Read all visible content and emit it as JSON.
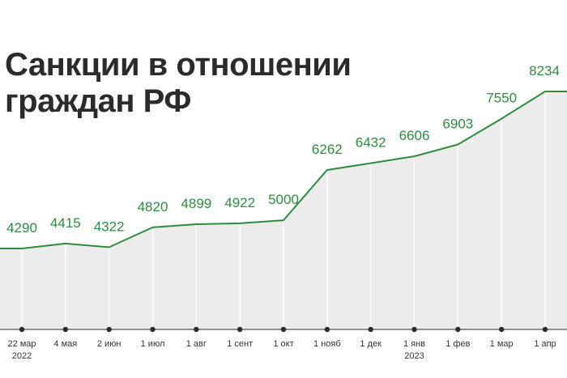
{
  "chart_data": {
    "type": "area",
    "title_lines": [
      "Санкции в отношении",
      "граждан РФ"
    ],
    "categories": [
      {
        "label": "22 мар",
        "year": "2022"
      },
      {
        "label": "4 мая",
        "year": ""
      },
      {
        "label": "2 июн",
        "year": ""
      },
      {
        "label": "1 июл",
        "year": ""
      },
      {
        "label": "1 авг",
        "year": ""
      },
      {
        "label": "1 сент",
        "year": ""
      },
      {
        "label": "1 окт",
        "year": ""
      },
      {
        "label": "1 нояб",
        "year": ""
      },
      {
        "label": "1 дек",
        "year": ""
      },
      {
        "label": "1 янв",
        "year": "2023"
      },
      {
        "label": "1 фев",
        "year": ""
      },
      {
        "label": "1 мар",
        "year": ""
      },
      {
        "label": "1 апр",
        "year": ""
      }
    ],
    "values": [
      4290,
      4415,
      4322,
      4820,
      4899,
      4922,
      5000,
      6262,
      6432,
      6606,
      6903,
      7550,
      8234
    ],
    "colors": {
      "line": "#2e8b40",
      "fill": "#ececec",
      "labels": "#2e8b40",
      "axis": "#2b2b2b",
      "title": "#2b2b2b"
    },
    "grid": "vertical",
    "legend": "none"
  }
}
